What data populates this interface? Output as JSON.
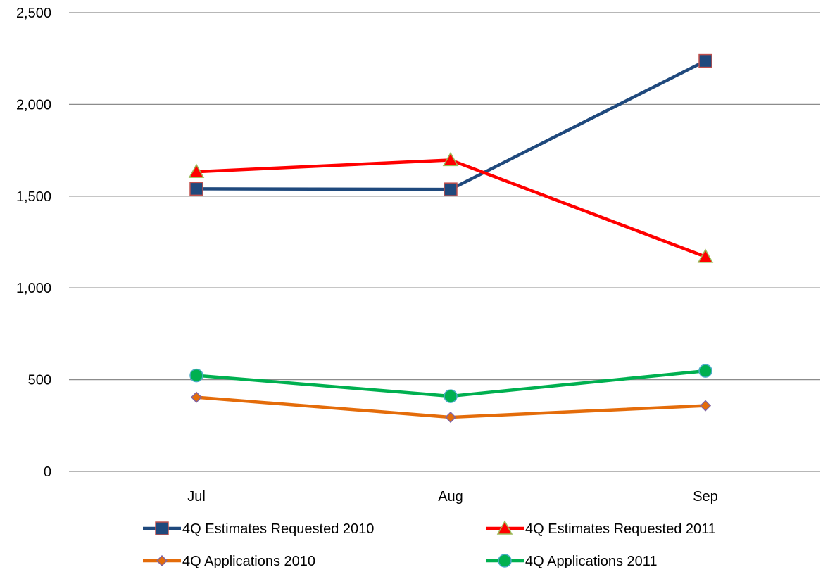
{
  "chart_data": {
    "type": "line",
    "title": "",
    "xlabel": "",
    "ylabel": "",
    "categories": [
      "Jul",
      "Aug",
      "Sep"
    ],
    "ylim": [
      0,
      2500
    ],
    "yticks": [
      0,
      500,
      1000,
      1500,
      2000,
      2500
    ],
    "ytick_labels": [
      "0",
      "500",
      "1,000",
      "1,500",
      "2,000",
      "2,500"
    ],
    "grid": true,
    "legend_position": "bottom",
    "series": [
      {
        "name": "4Q Estimates Requested 2010",
        "values": [
          1540,
          1537,
          2237
        ],
        "color": "#1F497D",
        "marker": "square",
        "marker_fill": "#1F497D",
        "marker_stroke": "#C0504D"
      },
      {
        "name": "4Q Estimates Requested 2011",
        "values": [
          1633,
          1697,
          1170
        ],
        "color": "#FF0000",
        "marker": "triangle",
        "marker_fill": "#FF0000",
        "marker_stroke": "#9BBB59"
      },
      {
        "name": "4Q Applications 2010",
        "values": [
          404,
          295,
          358
        ],
        "color": "#E46C0A",
        "marker": "diamond",
        "marker_fill": "#E46C0A",
        "marker_stroke": "#8064A2"
      },
      {
        "name": "4Q Applications 2011",
        "values": [
          523,
          410,
          548
        ],
        "color": "#00B050",
        "marker": "circle",
        "marker_fill": "#00B050",
        "marker_stroke": "#4BACC6"
      }
    ]
  }
}
